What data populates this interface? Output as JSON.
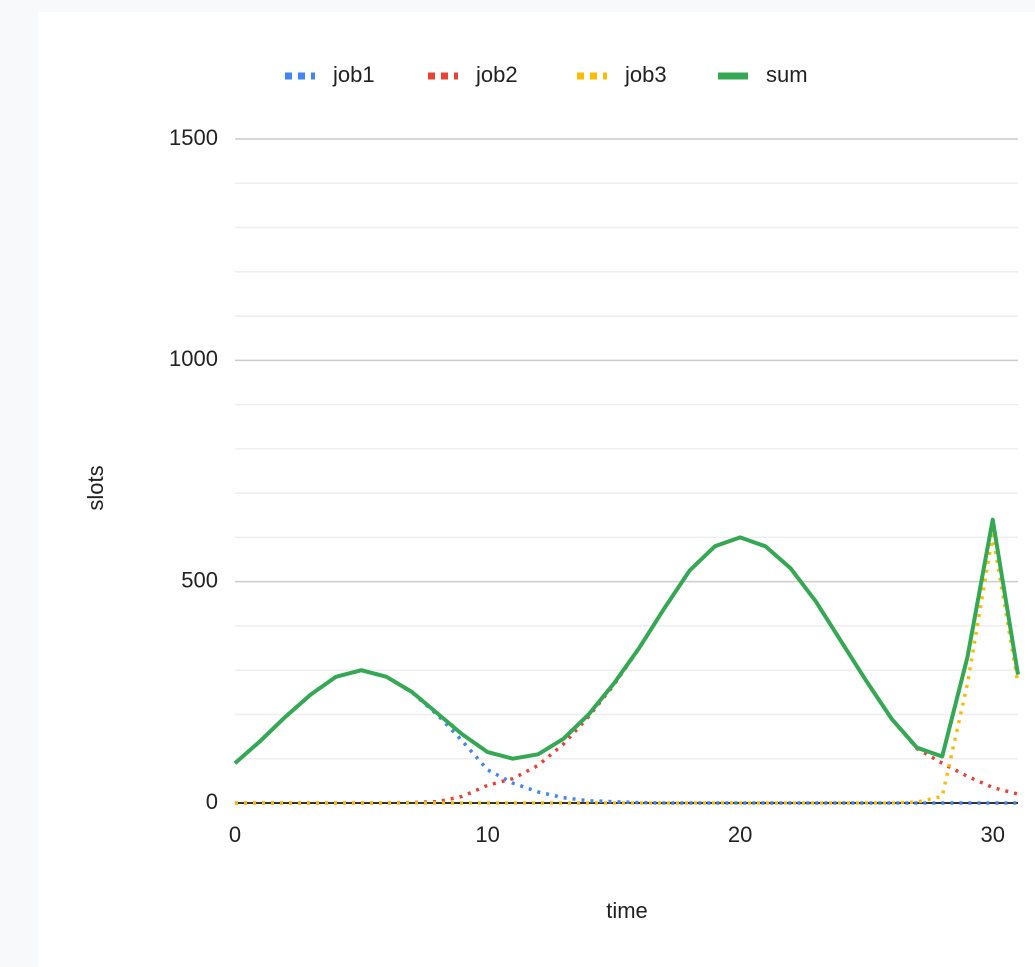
{
  "chart_data": {
    "type": "line",
    "x_label": "time",
    "y_label": "slots",
    "x": [
      0,
      1,
      2,
      3,
      4,
      5,
      6,
      7,
      8,
      9,
      10,
      11,
      12,
      13,
      14,
      15,
      16,
      17,
      18,
      19,
      20,
      21,
      22,
      23,
      24,
      25,
      26,
      27,
      28,
      29,
      30,
      31
    ],
    "series": [
      {
        "name": "job1",
        "color": "#4285f4",
        "style": "dotted",
        "values": [
          90,
          140,
          195,
          245,
          285,
          300,
          285,
          250,
          200,
          140,
          75,
          45,
          25,
          12,
          5,
          3,
          1,
          0,
          0,
          0,
          0,
          0,
          0,
          0,
          0,
          0,
          0,
          0,
          0,
          0,
          0,
          0
        ]
      },
      {
        "name": "job2",
        "color": "#ea4335",
        "style": "dotted",
        "values": [
          0,
          0,
          0,
          0,
          0,
          0,
          0,
          1,
          3,
          15,
          40,
          55,
          85,
          133,
          195,
          267,
          349,
          440,
          525,
          580,
          600,
          580,
          530,
          455,
          365,
          275,
          190,
          123,
          90,
          60,
          35,
          20
        ]
      },
      {
        "name": "job3",
        "color": "#fbbc04",
        "style": "dotted",
        "values": [
          0,
          0,
          0,
          0,
          0,
          0,
          0,
          0,
          0,
          0,
          0,
          0,
          0,
          0,
          0,
          0,
          0,
          0,
          0,
          0,
          0,
          0,
          0,
          0,
          0,
          0,
          0,
          2,
          15,
          270,
          605,
          270
        ]
      },
      {
        "name": "sum",
        "color": "#34a853",
        "style": "solid",
        "values": [
          90,
          140,
          195,
          245,
          285,
          300,
          285,
          251,
          203,
          155,
          115,
          100,
          110,
          145,
          200,
          270,
          350,
          440,
          525,
          580,
          600,
          580,
          530,
          455,
          365,
          275,
          190,
          125,
          105,
          330,
          640,
          290
        ]
      }
    ],
    "xlim": [
      0,
      31
    ],
    "xticks": [
      0,
      10,
      20,
      30
    ],
    "ylim": [
      0,
      1500
    ],
    "yticks": [
      0,
      500,
      1000,
      1500
    ],
    "y_minor_ticks": [
      100,
      200,
      300,
      400,
      600,
      700,
      800,
      900,
      1100,
      1200,
      1300,
      1400
    ],
    "grid": true,
    "legend": "top"
  }
}
